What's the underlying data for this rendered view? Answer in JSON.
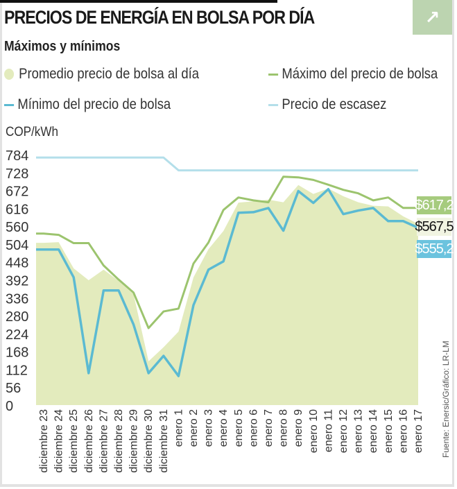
{
  "header": {
    "title": "PRECIOS DE ENERGÍA EN BOLSA POR DÍA",
    "subtitle": "Máximos y mínimos",
    "expand_icon": "arrow-up-right-icon",
    "expand_glyph": "↗"
  },
  "source": "Fuente: Enersic/Gráfico: LR-LM",
  "colors": {
    "promedio": "#e3ebbd",
    "maximo": "#9cc46e",
    "minimo": "#5bbad2",
    "escasez": "#b4dfea",
    "label_max_bg": "#a6cb7e",
    "label_min_bg": "#6cc3de",
    "label_avg_bg": "#f1f4e2"
  },
  "chart_data": {
    "type": "line",
    "title": "PRECIOS DE ENERGÍA EN BOLSA POR DÍA",
    "subtitle": "Máximos y mínimos",
    "ylabel": "COP/kWh",
    "xlabel": "",
    "ylim": [
      0,
      784
    ],
    "yticks": [
      0,
      56,
      112,
      168,
      224,
      280,
      336,
      392,
      448,
      504,
      560,
      616,
      672,
      728,
      784
    ],
    "grid": false,
    "legend_placement": "top",
    "legend": [
      {
        "label": "Promedio precio de bolsa al día",
        "marker": "dot",
        "series": "promedio"
      },
      {
        "label": "Máximo del precio de bolsa",
        "marker": "line",
        "series": "maximo"
      },
      {
        "label": "Mínimo del precio de bolsa",
        "marker": "line",
        "series": "minimo"
      },
      {
        "label": "Precio de escasez",
        "marker": "line",
        "series": "escasez"
      }
    ],
    "categories": [
      "diciembre 23",
      "diciembre 24",
      "diciembre 25",
      "diciembre 26",
      "diciembre 27",
      "diciembre 28",
      "diciembre 29",
      "diciembre 30",
      "diciembre 31",
      "enero 1",
      "enero 2",
      "enero 3",
      "enero 4",
      "enero 5",
      "enero 6",
      "enero 7",
      "enero 8",
      "enero 9",
      "enero 10",
      "enero 11",
      "enero 12",
      "enero 13",
      "enero 14",
      "enero 15",
      "enero 16",
      "enero 17"
    ],
    "series": [
      {
        "name": "Promedio precio de bolsa al día",
        "key": "promedio",
        "kind": "area",
        "values": [
          508,
          510,
          428,
          391,
          424,
          389,
          347,
          137,
          181,
          230,
          400,
          488,
          545,
          634,
          638,
          643,
          635,
          689,
          661,
          678,
          654,
          635,
          624,
          622,
          591,
          567.5
        ]
      },
      {
        "name": "Máximo del precio de bolsa",
        "key": "maximo",
        "kind": "line",
        "values": [
          537,
          533,
          507,
          507,
          437,
          393,
          352,
          241,
          293,
          302,
          443,
          509,
          611,
          650,
          641,
          635,
          715,
          713,
          705,
          690,
          674,
          663,
          641,
          650,
          617.2,
          617.2
        ]
      },
      {
        "name": "Mínimo del precio de bolsa",
        "key": "minimo",
        "kind": "line",
        "values": [
          487,
          487,
          400,
          100,
          359,
          359,
          252,
          100,
          154,
          91,
          313,
          424,
          450,
          602,
          604,
          617,
          546,
          670,
          633,
          676,
          598,
          609,
          617,
          576,
          576,
          555.2
        ]
      },
      {
        "name": "Precio de escasez",
        "key": "escasez",
        "kind": "line",
        "values": [
          775,
          775,
          775,
          775,
          775,
          775,
          775,
          775,
          775,
          735,
          735,
          735,
          735,
          735,
          735,
          735,
          735,
          735,
          735,
          735,
          735,
          735,
          735,
          735,
          735,
          735
        ]
      }
    ],
    "end_labels": {
      "maximo": "$617,2",
      "promedio": "$567,5",
      "minimo": "$555,2"
    }
  }
}
